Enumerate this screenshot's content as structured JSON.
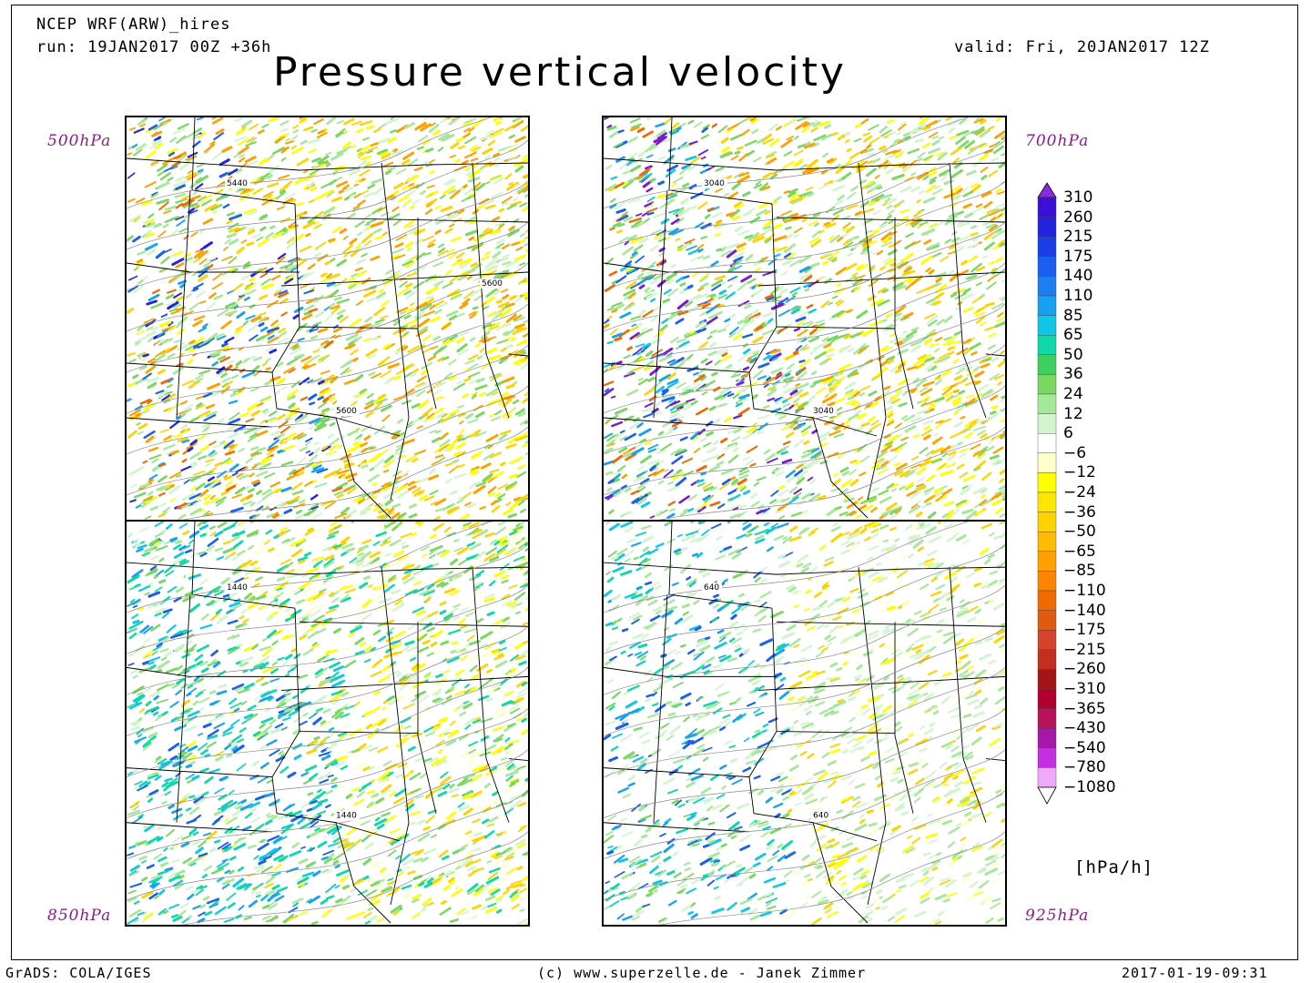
{
  "header": {
    "model": "NCEP WRF(ARW)_hires",
    "run": "run: 19JAN2017 00Z +36h",
    "valid": "valid: Fri, 20JAN2017 12Z",
    "title": "Pressure vertical velocity"
  },
  "panels": [
    {
      "id": "p500",
      "label": "500hPa",
      "contour": "5440",
      "contour2": "5600",
      "contour3": "5600",
      "variant": 1
    },
    {
      "id": "p700",
      "label": "700hPa",
      "contour": "3040",
      "contour2": "3040",
      "contour3": "",
      "variant": 2
    },
    {
      "id": "p850",
      "label": "850hPa",
      "contour": "1440",
      "contour2": "1440",
      "contour3": "",
      "variant": 3
    },
    {
      "id": "p925",
      "label": "925hPa",
      "contour": "640",
      "contour2": "640",
      "contour3": "",
      "variant": 4
    }
  ],
  "colorbar": {
    "unit": "[hPa/h]",
    "levels": [
      "310",
      "260",
      "215",
      "175",
      "140",
      "110",
      "85",
      "65",
      "50",
      "36",
      "24",
      "12",
      "6",
      "−6",
      "−12",
      "−24",
      "−36",
      "−50",
      "−65",
      "−85",
      "−110",
      "−140",
      "−175",
      "−215",
      "−260",
      "−310",
      "−365",
      "−430",
      "−540",
      "−780",
      "−1080"
    ],
    "colors": [
      "#3b0fd6",
      "#2323e0",
      "#1c3ee8",
      "#1a5ff0",
      "#1c7ef0",
      "#1aa0f0",
      "#10c7e6",
      "#10d8a8",
      "#3ecf5e",
      "#78d860",
      "#a6e89a",
      "#d2f5d0",
      "#ffffff",
      "#ffffcc",
      "#ffff00",
      "#ffe600",
      "#ffd200",
      "#ffbb00",
      "#ffa000",
      "#ff8400",
      "#f06a00",
      "#e05a10",
      "#d4442a",
      "#c23020",
      "#a51515",
      "#b00030",
      "#b8125a",
      "#a818a8",
      "#c230e0",
      "#f0a8f8"
    ],
    "top_color": "#8a2be2",
    "bottom_color": "#ffffff"
  },
  "footer": {
    "left": "GrADS: COLA/IGES",
    "center": "(c) www.superzelle.de - Janek Zimmer",
    "right": "2017-01-19-09:31"
  }
}
